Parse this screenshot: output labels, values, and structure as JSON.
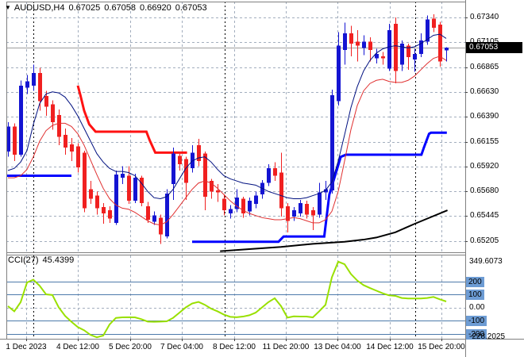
{
  "header": {
    "dropdown_icon": "▼",
    "symbol_period": "AUDUSD,H4",
    "open": "0.67025",
    "high": "0.67058",
    "low": "0.66920",
    "close": "0.67053"
  },
  "indicator": {
    "label": "CCI(27)",
    "value": "45.4399"
  },
  "price_axis": {
    "labels": [
      "0.67340",
      "0.67105",
      "0.66865",
      "0.66630",
      "0.66390",
      "0.66155",
      "0.65920",
      "0.65680",
      "0.65445",
      "0.65205"
    ],
    "current_price": "0.67053"
  },
  "cci_axis": {
    "max_label": "349.6073",
    "level_labels": [
      "200",
      "100",
      "-100",
      "-200"
    ],
    "zero_label": "0.00",
    "min_label": "-228.2025"
  },
  "time_axis": {
    "labels": [
      "1 Dec 2023",
      "4 Dec 12:00",
      "5 Dec 20:00",
      "7 Dec 04:00",
      "8 Dec 12:00",
      "11 Dec 20:00",
      "13 Dec 04:00",
      "14 Dec 12:00",
      "15 Dec 20:00"
    ]
  },
  "colors": {
    "bull": "#1414D2",
    "bear": "#F02020",
    "upper_band": "#001080",
    "lower_band": "#E03030",
    "step_red": "#FF1212",
    "step_blue": "#0000FF",
    "trend_black": "#000000",
    "cci_line": "#99E000",
    "cci_level": "#4D7AAB",
    "grid": "#A3AEBE",
    "separator": "#000000",
    "current_line": "#9E9E9E",
    "border": "#808080",
    "badge_bg": "#000000",
    "level_badge_bg": "#6D9CD4"
  },
  "chart_data": {
    "type": "candlestick",
    "title": "AUDUSD,H4 0.67025 0.67058 0.66920 0.67053",
    "symbol": "AUDUSD",
    "timeframe": "H4",
    "last_bar": {
      "open": 0.67025,
      "high": 0.67058,
      "low": 0.6692,
      "close": 0.67053
    },
    "price_ticks": [
      0.6734,
      0.67105,
      0.66865,
      0.6663,
      0.6639,
      0.66155,
      0.6592,
      0.6568,
      0.65445,
      0.65205
    ],
    "time_gridline_bars": [
      2.875,
      11,
      19.25,
      27.375,
      35.625,
      43.75,
      51.875,
      60.125,
      68.25
    ],
    "week_separator_bars": [
      4,
      34.1,
      64.1
    ],
    "candles": [
      [
        0.6606,
        0.6634,
        0.6601,
        0.663
      ],
      [
        0.663,
        0.6633,
        0.6597,
        0.6603
      ],
      [
        0.6603,
        0.6674,
        0.6601,
        0.6669
      ],
      [
        0.6667,
        0.6679,
        0.6661,
        0.6673
      ],
      [
        0.6669,
        0.6689,
        0.6664,
        0.6681
      ],
      [
        0.6681,
        0.6686,
        0.6645,
        0.6654
      ],
      [
        0.6659,
        0.6664,
        0.664,
        0.6649
      ],
      [
        0.6651,
        0.6655,
        0.6627,
        0.6634
      ],
      [
        0.6641,
        0.6646,
        0.6612,
        0.662
      ],
      [
        0.6622,
        0.6628,
        0.6603,
        0.661
      ],
      [
        0.6613,
        0.6619,
        0.6597,
        0.6606
      ],
      [
        0.6611,
        0.6614,
        0.6586,
        0.6591
      ],
      [
        0.6605,
        0.6607,
        0.6548,
        0.6552
      ],
      [
        0.657,
        0.6578,
        0.6556,
        0.6561
      ],
      [
        0.6564,
        0.6568,
        0.6546,
        0.6552
      ],
      [
        0.6553,
        0.6557,
        0.6537,
        0.6547
      ],
      [
        0.655,
        0.6554,
        0.6538,
        0.6542
      ],
      [
        0.6538,
        0.6588,
        0.6536,
        0.6584
      ],
      [
        0.6581,
        0.6592,
        0.6575,
        0.6585
      ],
      [
        0.6583,
        0.6592,
        0.6556,
        0.6559
      ],
      [
        0.6559,
        0.6585,
        0.6557,
        0.6581
      ],
      [
        0.6581,
        0.6583,
        0.6554,
        0.6557
      ],
      [
        0.6554,
        0.6558,
        0.6538,
        0.6541
      ],
      [
        0.6539,
        0.6549,
        0.6536,
        0.6545
      ],
      [
        0.6543,
        0.6546,
        0.6518,
        0.6527
      ],
      [
        0.6525,
        0.657,
        0.6523,
        0.6566
      ],
      [
        0.6575,
        0.661,
        0.656,
        0.6604
      ],
      [
        0.6602,
        0.6606,
        0.6588,
        0.6594
      ],
      [
        0.6599,
        0.6601,
        0.656,
        0.6576
      ],
      [
        0.659,
        0.6612,
        0.6586,
        0.6605
      ],
      [
        0.6612,
        0.6618,
        0.6592,
        0.6597
      ],
      [
        0.6604,
        0.6606,
        0.655,
        0.6563
      ],
      [
        0.6578,
        0.658,
        0.6561,
        0.6568
      ],
      [
        0.6569,
        0.6575,
        0.6558,
        0.6567
      ],
      [
        0.6561,
        0.6565,
        0.6545,
        0.655
      ],
      [
        0.6547,
        0.6555,
        0.6542,
        0.6551
      ],
      [
        0.6551,
        0.657,
        0.6548,
        0.6562
      ],
      [
        0.6561,
        0.6563,
        0.6543,
        0.6547
      ],
      [
        0.6549,
        0.6562,
        0.6545,
        0.6559
      ],
      [
        0.6556,
        0.6568,
        0.6552,
        0.6564
      ],
      [
        0.6565,
        0.6579,
        0.6561,
        0.6576
      ],
      [
        0.6576,
        0.6594,
        0.6573,
        0.659
      ],
      [
        0.659,
        0.6596,
        0.6578,
        0.6583
      ],
      [
        0.6586,
        0.6605,
        0.6544,
        0.6552
      ],
      [
        0.6554,
        0.6557,
        0.6529,
        0.654
      ],
      [
        0.6544,
        0.6553,
        0.654,
        0.655
      ],
      [
        0.6547,
        0.656,
        0.6544,
        0.6557
      ],
      [
        0.6556,
        0.6559,
        0.6542,
        0.6546
      ],
      [
        0.655,
        0.6553,
        0.6531,
        0.6545
      ],
      [
        0.6546,
        0.6576,
        0.6543,
        0.6567
      ],
      [
        0.6567,
        0.6578,
        0.656,
        0.657
      ],
      [
        0.6569,
        0.6665,
        0.6566,
        0.666
      ],
      [
        0.6654,
        0.672,
        0.665,
        0.6707
      ],
      [
        0.6703,
        0.6729,
        0.6689,
        0.6719
      ],
      [
        0.6719,
        0.6726,
        0.6697,
        0.6709
      ],
      [
        0.6711,
        0.6722,
        0.6692,
        0.6707
      ],
      [
        0.6705,
        0.6717,
        0.6698,
        0.6711
      ],
      [
        0.6711,
        0.6715,
        0.6692,
        0.6703
      ],
      [
        0.6695,
        0.6704,
        0.669,
        0.6699
      ],
      [
        0.6697,
        0.6701,
        0.6689,
        0.6695
      ],
      [
        0.6685,
        0.6728,
        0.6683,
        0.6722
      ],
      [
        0.6728,
        0.6734,
        0.6671,
        0.6683
      ],
      [
        0.6689,
        0.6712,
        0.6683,
        0.6709
      ],
      [
        0.6707,
        0.6709,
        0.6684,
        0.6696
      ],
      [
        0.6694,
        0.6704,
        0.6682,
        0.6699
      ],
      [
        0.6699,
        0.6719,
        0.6696,
        0.6712
      ],
      [
        0.6711,
        0.6736,
        0.6708,
        0.6732
      ],
      [
        0.6733,
        0.6737,
        0.672,
        0.6724
      ],
      [
        0.6727,
        0.673,
        0.6687,
        0.6692
      ],
      [
        0.67025,
        0.67058,
        0.6692,
        0.67053
      ]
    ],
    "upper_band": [
      0.6588,
      0.659,
      0.6596,
      0.6607,
      0.6632,
      0.6652,
      0.6661,
      0.6663,
      0.6662,
      0.6658,
      0.665,
      0.664,
      0.6628,
      0.6616,
      0.6604,
      0.6596,
      0.659,
      0.6587,
      0.6587,
      0.6586,
      0.6583,
      0.6576,
      0.6568,
      0.6562,
      0.6561,
      0.6563,
      0.657,
      0.658,
      0.659,
      0.6597,
      0.66,
      0.6601,
      0.6596,
      0.6589,
      0.6583,
      0.658,
      0.6578,
      0.6576,
      0.6575,
      0.6574,
      0.6571,
      0.6568,
      0.6566,
      0.6564,
      0.6562,
      0.6561,
      0.6561,
      0.6562,
      0.6564,
      0.6566,
      0.6569,
      0.6577,
      0.6597,
      0.6622,
      0.6648,
      0.6668,
      0.6683,
      0.6693,
      0.67,
      0.6704,
      0.6706,
      0.6707,
      0.6706,
      0.6705,
      0.6706,
      0.6709,
      0.6713,
      0.6717,
      0.6718,
      0.6714
    ],
    "lower_band": [
      0.6581,
      0.6581,
      0.6583,
      0.6589,
      0.6601,
      0.6616,
      0.6626,
      0.6631,
      0.6633,
      0.6633,
      0.663,
      0.6623,
      0.6612,
      0.6598,
      0.6584,
      0.6571,
      0.6561,
      0.6555,
      0.6552,
      0.6551,
      0.6548,
      0.6544,
      0.654,
      0.6537,
      0.6536,
      0.6539,
      0.6546,
      0.6554,
      0.6562,
      0.657,
      0.6576,
      0.6578,
      0.6576,
      0.6571,
      0.6565,
      0.6559,
      0.6554,
      0.655,
      0.6547,
      0.6545,
      0.6543,
      0.6542,
      0.6541,
      0.6541,
      0.6542,
      0.6543,
      0.6542,
      0.654,
      0.6538,
      0.6538,
      0.6541,
      0.6549,
      0.6568,
      0.6597,
      0.6627,
      0.665,
      0.6664,
      0.6671,
      0.6674,
      0.6675,
      0.6673,
      0.6672,
      0.6672,
      0.6674,
      0.6678,
      0.6684,
      0.669,
      0.6695,
      0.6697,
      0.6693
    ],
    "resistance_step_red": [
      [
        11,
        0.6669
      ],
      [
        11.4,
        0.666
      ],
      [
        12,
        0.6645
      ],
      [
        12.8,
        0.6632
      ],
      [
        13.8,
        0.6625
      ],
      [
        21.8,
        0.6625
      ],
      [
        22.3,
        0.6617
      ],
      [
        23.2,
        0.6605
      ],
      [
        28.2,
        0.6605
      ]
    ],
    "support_step_blue_segments": [
      [
        [
          -0.3,
          0.6583
        ],
        [
          10,
          0.6583
        ]
      ],
      [
        [
          29,
          0.652
        ],
        [
          42.6,
          0.652
        ],
        [
          43.4,
          0.6525
        ],
        [
          49.8,
          0.6525
        ],
        [
          50.6,
          0.6565
        ],
        [
          52.4,
          0.6601
        ],
        [
          53.2,
          0.6603
        ],
        [
          65.1,
          0.6603
        ],
        [
          65.5,
          0.661
        ],
        [
          66.3,
          0.6623
        ],
        [
          66.6,
          0.6624
        ],
        [
          69.1,
          0.6624
        ]
      ]
    ],
    "trend_black": [
      [
        33.4,
        0.6511
      ],
      [
        38,
        0.6513
      ],
      [
        43,
        0.6515
      ],
      [
        48,
        0.6518
      ],
      [
        53,
        0.652
      ],
      [
        56,
        0.6522
      ],
      [
        58,
        0.6524
      ],
      [
        61,
        0.6529
      ],
      [
        64,
        0.6537
      ],
      [
        66,
        0.6542
      ],
      [
        69.2,
        0.655
      ]
    ],
    "cci": {
      "period": 27,
      "last": 45.4399,
      "max": 349.6073,
      "min": -228.2025,
      "levels": [
        200,
        100,
        0,
        -100,
        -200
      ],
      "values": [
        10,
        -30,
        40,
        190,
        212,
        165,
        100,
        95,
        0,
        -65,
        -110,
        -150,
        -175,
        -210,
        -228.2,
        -215,
        -130,
        -80,
        -76,
        -75,
        -76,
        -90,
        -108,
        -110,
        -108,
        -106,
        -80,
        -40,
        0,
        30,
        42,
        20,
        -10,
        -30,
        -55,
        -72,
        -75,
        -70,
        -60,
        -40,
        0,
        40,
        70,
        10,
        -78,
        -68,
        -70,
        -70,
        -76,
        -30,
        20,
        230,
        349.6073,
        330,
        255,
        205,
        170,
        148,
        128,
        108,
        92,
        88,
        72,
        68,
        68,
        68,
        72,
        80,
        62,
        45.4399
      ]
    }
  }
}
